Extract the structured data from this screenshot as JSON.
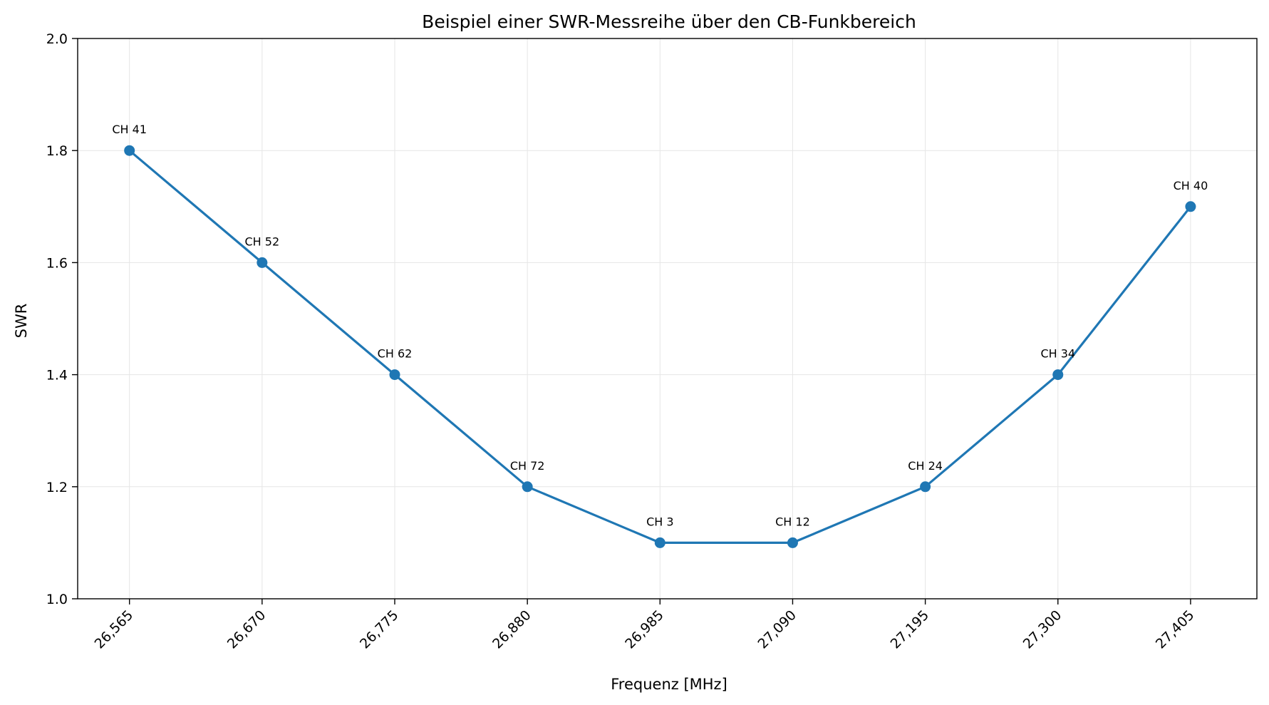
{
  "chart_data": {
    "type": "line",
    "title": "Beispiel einer SWR-Messreihe über den CB-Funkbereich",
    "xlabel": "Frequenz [MHz]",
    "ylabel": "SWR",
    "x": [
      26.565,
      26.67,
      26.775,
      26.88,
      26.985,
      27.09,
      27.195,
      27.3,
      27.405
    ],
    "x_tick_labels": [
      "26,565",
      "26,670",
      "26,775",
      "26,880",
      "26,985",
      "27,090",
      "27,195",
      "27,300",
      "27,405"
    ],
    "y_ticks": [
      1.0,
      1.2,
      1.4,
      1.6,
      1.8,
      2.0
    ],
    "y_tick_labels": [
      "1.0",
      "1.2",
      "1.4",
      "1.6",
      "1.8",
      "2.0"
    ],
    "ylim": [
      1.0,
      2.0
    ],
    "xlim": [
      26.524,
      27.4575
    ],
    "series": [
      {
        "values": [
          1.8,
          1.6,
          1.4,
          1.2,
          1.1,
          1.1,
          1.2,
          1.4,
          1.7
        ],
        "color": "#1f77b4",
        "marker": "circle"
      }
    ],
    "point_labels": [
      "CH 41",
      "CH 52",
      "CH 62",
      "CH 72",
      "CH 3",
      "CH 12",
      "CH 24",
      "CH 34",
      "CH 40"
    ],
    "grid": true,
    "legend": "none"
  }
}
